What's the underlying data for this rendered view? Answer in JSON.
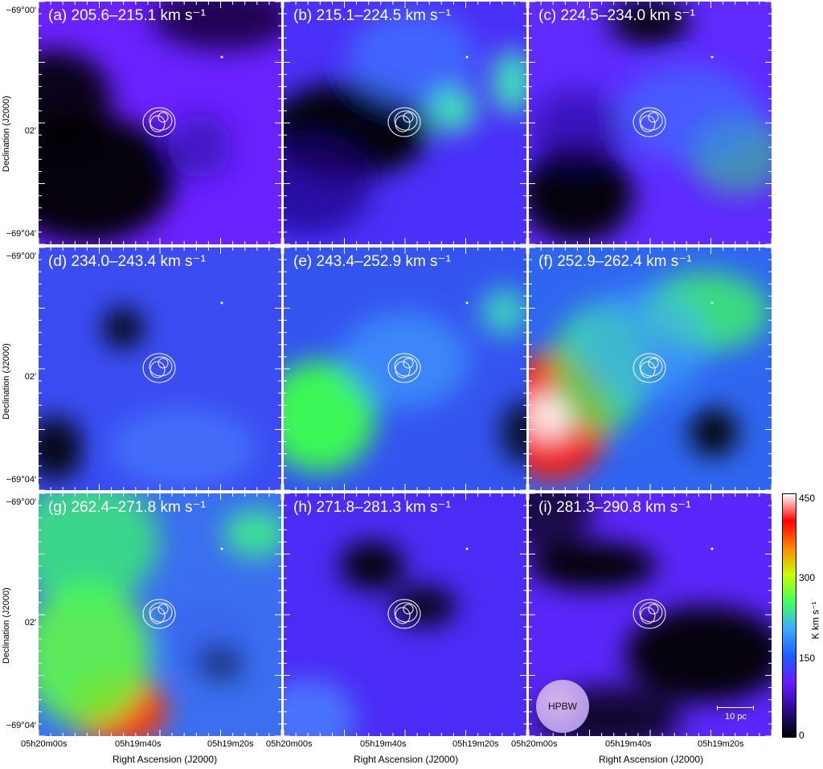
{
  "chart_data": {
    "type": "heatmap",
    "description_units": "velocity-channel integrated intensity maps",
    "xlabel": "Right Ascension (J2000)",
    "ylabel": "Declination (J2000)",
    "x_ticks": [
      "05h20m00s",
      "05h19m40s",
      "05h19m20s"
    ],
    "y_ticks": [
      "−69°00′",
      "02′",
      "−69°04′"
    ],
    "colorbar": {
      "label": "K km s⁻¹",
      "range": [
        0,
        450
      ],
      "ticks": [
        "0",
        "150",
        "300",
        "450"
      ],
      "colormap": [
        "#000000",
        "#2a0a8a",
        "#6a1aff",
        "#1e5cff",
        "#3faaff",
        "#40ff60",
        "#c8ff00",
        "#ff8a00",
        "#ff0000",
        "#ffffff"
      ]
    },
    "panels": [
      {
        "label": "(a) 205.6–215.1 km s⁻¹"
      },
      {
        "label": "(b) 215.1–224.5 km s⁻¹"
      },
      {
        "label": "(c) 224.5–234.0 km s⁻¹"
      },
      {
        "label": "(d) 234.0–243.4 km s⁻¹"
      },
      {
        "label": "(e) 243.4–252.9 km s⁻¹"
      },
      {
        "label": "(f) 252.9–262.4 km s⁻¹"
      },
      {
        "label": "(g) 262.4–271.8 km s⁻¹"
      },
      {
        "label": "(h) 271.8–281.3 km s⁻¹"
      },
      {
        "label": "(i) 281.3–290.8 km s⁻¹"
      }
    ],
    "beam_label": "HPBW",
    "scalebar_label": "10 pc"
  }
}
